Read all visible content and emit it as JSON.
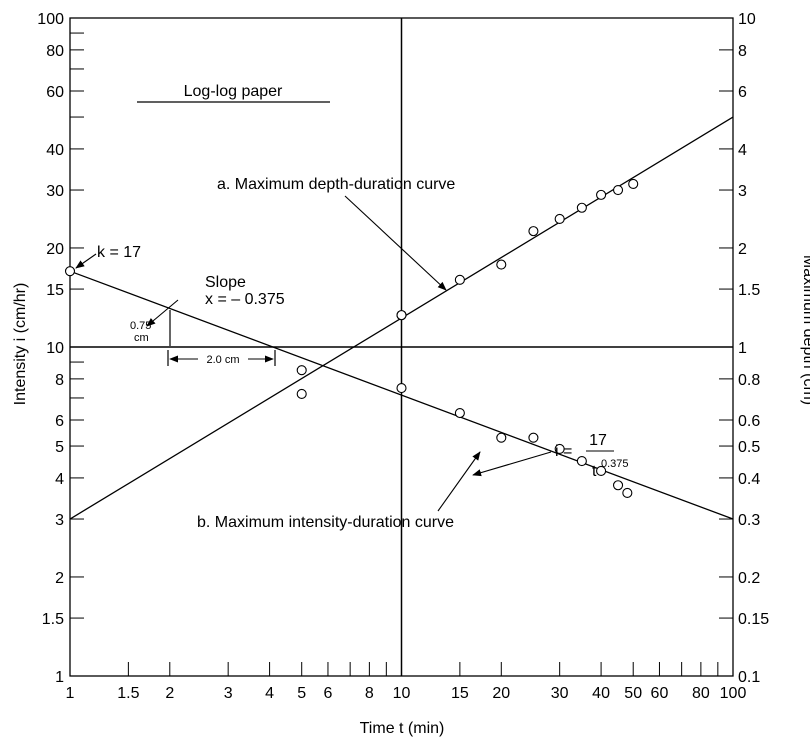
{
  "chart_data": {
    "type": "scatter",
    "x_scale": "log",
    "y_scale": "log",
    "xlabel": "Time t (min)",
    "ylabel_left": "Intensity i (cm/hr)",
    "ylabel_right": "Maximum depth (cm)",
    "xlim": [
      1,
      100
    ],
    "ylim_left": [
      1,
      100
    ],
    "ylim_right": [
      0.1,
      10
    ],
    "x_ticks": [
      1,
      1.5,
      2,
      3,
      4,
      5,
      6,
      7,
      8,
      9,
      10,
      15,
      20,
      30,
      40,
      50,
      60,
      70,
      80,
      90,
      100
    ],
    "x_tick_labels": [
      "1",
      "1.5",
      "2",
      "3",
      "4",
      "5",
      "6",
      "8",
      "10",
      "15",
      "20",
      "30",
      "40",
      "50",
      "60",
      "80",
      "100"
    ],
    "x_tick_label_values": [
      1,
      1.5,
      2,
      3,
      4,
      5,
      6,
      8,
      10,
      15,
      20,
      30,
      40,
      50,
      60,
      80,
      100
    ],
    "y_left_tick_labels": [
      "1",
      "1.5",
      "2",
      "3",
      "4",
      "5",
      "6",
      "8",
      "10",
      "15",
      "20",
      "30",
      "40",
      "60",
      "80",
      "100"
    ],
    "y_left_tick_values": [
      1,
      1.5,
      2,
      3,
      4,
      5,
      6,
      8,
      10,
      15,
      20,
      30,
      40,
      60,
      80,
      100
    ],
    "y_right_tick_labels": [
      "0.1",
      "0.15",
      "0.2",
      "0.3",
      "0.4",
      "0.5",
      "0.6",
      "0.8",
      "1",
      "1.5",
      "2",
      "3",
      "4",
      "6",
      "8",
      "10"
    ],
    "y_right_tick_values": [
      0.1,
      0.15,
      0.2,
      0.3,
      0.4,
      0.5,
      0.6,
      0.8,
      1,
      1.5,
      2,
      3,
      4,
      6,
      8,
      10
    ],
    "y_left_minor_ticks": [
      7,
      9,
      50,
      70,
      90
    ],
    "reference_lines": {
      "x": 10,
      "y_left": 10
    },
    "series": [
      {
        "name": "a. Maximum depth-duration curve",
        "axis": "right",
        "line": {
          "x": [
            1,
            100
          ],
          "y": [
            0.3,
            5.0
          ]
        },
        "points": {
          "x": [
            10,
            15,
            20,
            25,
            30,
            35,
            40,
            45,
            50
          ],
          "y": [
            1.25,
            1.6,
            1.78,
            2.25,
            2.45,
            2.65,
            2.9,
            3.0,
            3.13
          ]
        }
      },
      {
        "name": "b. Maximum intensity-duration curve",
        "axis": "left",
        "line": {
          "x": [
            1,
            100
          ],
          "y": [
            17,
            3.0
          ]
        },
        "points": {
          "x": [
            1,
            5,
            5,
            10,
            10,
            15,
            20,
            25,
            30,
            35,
            40,
            45,
            48
          ],
          "y": [
            17,
            8.5,
            7.2,
            12.5,
            7.5,
            6.3,
            5.3,
            5.3,
            4.9,
            4.5,
            4.2,
            3.8,
            3.6
          ]
        }
      }
    ],
    "annotations": {
      "paper_label": "Log-log paper",
      "k_label": "k = 17",
      "slope_label": "Slope",
      "slope_value": "x = – 0.375",
      "rise_label": "0.75",
      "rise_unit": "cm",
      "run_label": "2.0 cm",
      "curve_a_label": "a. Maximum depth-duration curve",
      "curve_b_label": "b. Maximum intensity-duration curve",
      "equation_lhs": "i =",
      "equation_num": "17",
      "equation_den": "t",
      "equation_exp": "0.375"
    }
  }
}
